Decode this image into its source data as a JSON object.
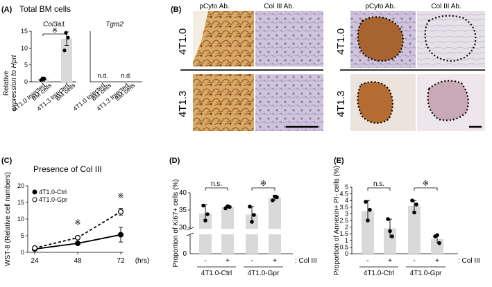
{
  "panel_labels": {
    "A": "(A)",
    "B": "(B)",
    "C": "(C)",
    "D": "(D)",
    "E": "(E)"
  },
  "panel_a": {
    "title": "Total BM cells",
    "ylabel_1": "Relative",
    "ylabel_2": "expression to Hprt",
    "xcat_1": [
      "4T1.0 Injected",
      "BM cells"
    ],
    "xcat_2": [
      "4T1.3 Injected",
      "BM cells"
    ],
    "nd": "n.d.",
    "sig": "※"
  },
  "panel_b": {
    "pcyto": "pCyto Ab.",
    "col3": "Col III Ab.",
    "row1": "4T1.0",
    "row2": "4T1.3"
  },
  "panel_c": {
    "title": "Presence of Col III",
    "sig": "※"
  },
  "panel_d": {
    "ns": "n.s.",
    "sig": "※",
    "sign_minus": "-",
    "sign_plus": "+",
    "col3": ": Col III"
  },
  "panel_e": {
    "ns": "n.s.",
    "sig": "※",
    "sign_minus": "-",
    "sign_plus": "+",
    "col3": ": Col III"
  },
  "colors": {
    "bar": "#d9d9d9",
    "tissue_brown": "#c8945a",
    "tissue_purple": "#b7aac9"
  },
  "chart_data": [
    {
      "id": "A-Col3a1",
      "type": "bar",
      "title": "Col3a1",
      "categories": [
        "4T1.0 Injected BM cells",
        "4T1.3 Injected BM cells"
      ],
      "values": [
        0.8,
        12.8
      ],
      "errors": [
        0.6,
        2.0
      ],
      "points": [
        [
          0.5,
          0.9,
          0.8
        ],
        [
          9.3,
          13.1,
          14.5
        ]
      ],
      "ylabel": "Relative expression to Hprt",
      "ylim": [
        0,
        15
      ],
      "yticks": [
        0,
        5,
        10,
        15
      ]
    },
    {
      "id": "A-Tgm2",
      "type": "bar",
      "title": "Tgm2",
      "categories": [
        "4T1.0 Injected BM cells",
        "4T1.3 Injected BM cells"
      ],
      "values": [
        null,
        null
      ],
      "labels": [
        "n.d.",
        "n.d."
      ]
    },
    {
      "id": "C",
      "type": "line",
      "title": "Presence of Col III",
      "x": [
        24,
        48,
        72
      ],
      "xlabel": "(hrs)",
      "ylabel": "WST-8 (Relative cell numbers)",
      "ylim": [
        0,
        20
      ],
      "yticks": [
        0,
        5,
        10,
        15,
        20
      ],
      "series": [
        {
          "name": "4T1.0-Ctrl",
          "values": [
            1.0,
            2.7,
            5.3
          ],
          "errors": [
            0.3,
            0.4,
            2.2
          ],
          "style": "solid"
        },
        {
          "name": "4T1.0-Gpr",
          "values": [
            1.3,
            4.4,
            12.2
          ],
          "errors": [
            0.3,
            0.4,
            1.0
          ],
          "style": "dashed"
        }
      ]
    },
    {
      "id": "D",
      "type": "bar",
      "ylabel": "Proportion of Ki67+ cells (%)",
      "groups": [
        "4T1.0-Ctrl",
        "4T1.0-Gpr"
      ],
      "categories": [
        "-",
        "+",
        "-",
        "+"
      ],
      "values": [
        34,
        35.8,
        33.7,
        38.5
      ],
      "errors": [
        2.5,
        0.3,
        2.3,
        0.8
      ],
      "points": [
        [
          36.3,
          33.8,
          32
        ],
        [
          35.5,
          35.9,
          36.1
        ],
        [
          36,
          33.6,
          31.6
        ],
        [
          37.8,
          38.7,
          38.9
        ]
      ],
      "ylim_upper": [
        30,
        40
      ],
      "yticks_upper": [
        30,
        35,
        40
      ],
      "ylim_lower": [
        0,
        10
      ],
      "yticks_lower": [
        0
      ]
    },
    {
      "id": "E",
      "type": "bar",
      "ylabel": "Proportion of Annexin+ PI- cells (%)",
      "groups": [
        "4T1.0-Ctrl",
        "4T1.0-Gpr"
      ],
      "categories": [
        "-",
        "+",
        "-",
        "+"
      ],
      "values": [
        3.2,
        1.9,
        3.6,
        1.1
      ],
      "errors": [
        0.8,
        0.7,
        0.4,
        0.3
      ],
      "points": [
        [
          3.9,
          3.3,
          2.5
        ],
        [
          2.6,
          1.3,
          1.7
        ],
        [
          4.0,
          3.7,
          3.1
        ],
        [
          1.3,
          0.8,
          1.4
        ]
      ],
      "ylim": [
        0,
        5
      ],
      "yticks": [
        0,
        0.5,
        1,
        1.5,
        2,
        2.5,
        3,
        3.5,
        4,
        4.5,
        5
      ]
    }
  ]
}
